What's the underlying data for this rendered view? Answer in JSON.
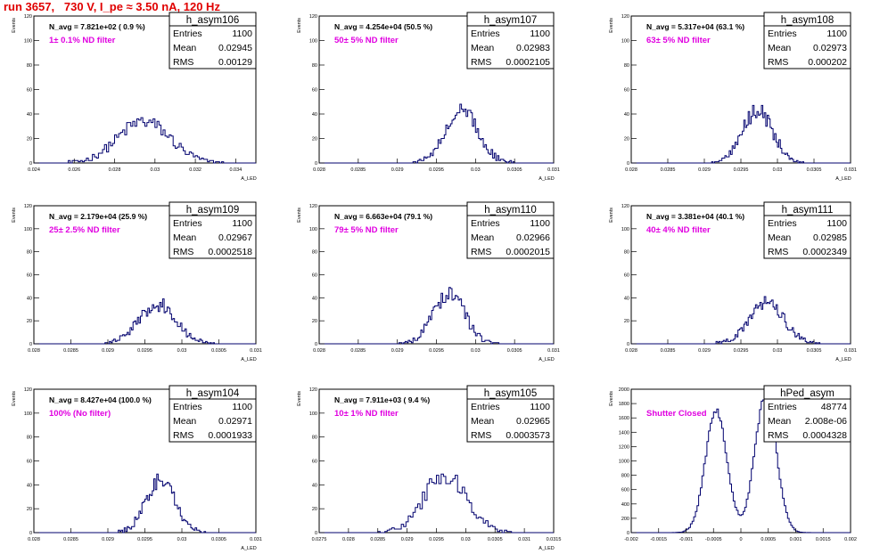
{
  "page_title": "run 3657,   730 V, I_pe ≈ 3.50 nA, 120 Hz",
  "colors": {
    "title": "#e00000",
    "annotation": "#e000e0",
    "histogram": "#00006e",
    "axis": "#000000",
    "panel_bg": "#ffffff"
  },
  "chart_data": [
    {
      "type": "histogram",
      "name": "h_asym106",
      "stats": {
        "entries_label": "Entries",
        "entries": "1100",
        "mean_label": "Mean",
        "mean": "0.02945",
        "rms_label": "RMS",
        "rms": "0.00129"
      },
      "n_avg_text": "N_avg = 7.821e+02 ( 0.9 %)",
      "filter_text": "1± 0.1% ND filter",
      "ylabel": "Events",
      "xlabel": "A_LED",
      "xlim": [
        0.024,
        0.035
      ],
      "ylim": [
        0,
        120
      ],
      "x_ticks": [
        0.024,
        0.026,
        0.028,
        0.03,
        0.032,
        0.034
      ],
      "x_tick_labels": [
        "0.024",
        "0.026",
        "0.028",
        "0.03",
        "0.032",
        "0.034"
      ],
      "y_ticks": [
        0,
        20,
        40,
        60,
        80,
        100,
        120
      ],
      "y_tick_labels": [
        "0",
        "20",
        "40",
        "60",
        "80",
        "100",
        "120"
      ],
      "mean_value": 0.02945,
      "rms_value": 0.00129,
      "total_counts": 1100,
      "bin_width": 0.0001,
      "peak_counts": 45,
      "shape": "gauss"
    },
    {
      "type": "histogram",
      "name": "h_asym107",
      "stats": {
        "entries_label": "Entries",
        "entries": "1100",
        "mean_label": "Mean",
        "mean": "0.02983",
        "rms_label": "RMS",
        "rms": "0.0002105"
      },
      "n_avg_text": "N_avg = 4.254e+04 (50.5 %)",
      "filter_text": "50± 5% ND filter",
      "ylabel": "Events",
      "xlabel": "A_LED",
      "xlim": [
        0.028,
        0.031
      ],
      "ylim": [
        0,
        120
      ],
      "x_ticks": [
        0.028,
        0.0285,
        0.029,
        0.0295,
        0.03,
        0.0305,
        0.031
      ],
      "x_tick_labels": [
        "0.028",
        "0.0285",
        "0.029",
        "0.0295",
        "0.03",
        "0.0305",
        "0.031"
      ],
      "y_ticks": [
        0,
        20,
        40,
        60,
        80,
        100,
        120
      ],
      "y_tick_labels": [
        "0",
        "20",
        "40",
        "60",
        "80",
        "100",
        "120"
      ],
      "mean_value": 0.02983,
      "rms_value": 0.0002105,
      "total_counts": 1100,
      "bin_width": 2e-05,
      "peak_counts": 82,
      "shape": "gauss"
    },
    {
      "type": "histogram",
      "name": "h_asym108",
      "stats": {
        "entries_label": "Entries",
        "entries": "1100",
        "mean_label": "Mean",
        "mean": "0.02973",
        "rms_label": "RMS",
        "rms": "0.000202"
      },
      "n_avg_text": "N_avg = 5.317e+04 (63.1 %)",
      "filter_text": "63± 5% ND filter",
      "ylabel": "Events",
      "xlabel": "A_LED",
      "xlim": [
        0.028,
        0.031
      ],
      "ylim": [
        0,
        120
      ],
      "x_ticks": [
        0.028,
        0.0285,
        0.029,
        0.0295,
        0.03,
        0.0305,
        0.031
      ],
      "x_tick_labels": [
        "0.028",
        "0.0285",
        "0.029",
        "0.0295",
        "0.03",
        "0.0305",
        "0.031"
      ],
      "y_ticks": [
        0,
        20,
        40,
        60,
        80,
        100,
        120
      ],
      "y_tick_labels": [
        "0",
        "20",
        "40",
        "60",
        "80",
        "100",
        "120"
      ],
      "mean_value": 0.02973,
      "rms_value": 0.000202,
      "total_counts": 1100,
      "bin_width": 2e-05,
      "peak_counts": 70,
      "shape": "gauss"
    },
    {
      "type": "histogram",
      "name": "h_asym109",
      "stats": {
        "entries_label": "Entries",
        "entries": "1100",
        "mean_label": "Mean",
        "mean": "0.02967",
        "rms_label": "RMS",
        "rms": "0.0002518"
      },
      "n_avg_text": "N_avg = 2.179e+04 (25.9 %)",
      "filter_text": "25± 2.5% ND filter",
      "ylabel": "Events",
      "xlabel": "A_LED",
      "xlim": [
        0.028,
        0.031
      ],
      "ylim": [
        0,
        120
      ],
      "x_ticks": [
        0.028,
        0.0285,
        0.029,
        0.0295,
        0.03,
        0.0305,
        0.031
      ],
      "x_tick_labels": [
        "0.028",
        "0.0285",
        "0.029",
        "0.0295",
        "0.03",
        "0.0305",
        "0.031"
      ],
      "y_ticks": [
        0,
        20,
        40,
        60,
        80,
        100,
        120
      ],
      "y_tick_labels": [
        "0",
        "20",
        "40",
        "60",
        "80",
        "100",
        "120"
      ],
      "mean_value": 0.02967,
      "rms_value": 0.0002518,
      "total_counts": 1100,
      "bin_width": 2e-05,
      "peak_counts": 61,
      "shape": "gauss"
    },
    {
      "type": "histogram",
      "name": "h_asym110",
      "stats": {
        "entries_label": "Entries",
        "entries": "1100",
        "mean_label": "Mean",
        "mean": "0.02966",
        "rms_label": "RMS",
        "rms": "0.0002015"
      },
      "n_avg_text": "N_avg = 6.663e+04 (79.1 %)",
      "filter_text": "79± 5% ND filter",
      "ylabel": "Events",
      "xlabel": "A_LED",
      "xlim": [
        0.028,
        0.031
      ],
      "ylim": [
        0,
        120
      ],
      "x_ticks": [
        0.028,
        0.0285,
        0.029,
        0.0295,
        0.03,
        0.0305,
        0.031
      ],
      "x_tick_labels": [
        "0.028",
        "0.0285",
        "0.029",
        "0.0295",
        "0.03",
        "0.0305",
        "0.031"
      ],
      "y_ticks": [
        0,
        20,
        40,
        60,
        80,
        100,
        120
      ],
      "y_tick_labels": [
        "0",
        "20",
        "40",
        "60",
        "80",
        "100",
        "120"
      ],
      "mean_value": 0.02966,
      "rms_value": 0.0002015,
      "total_counts": 1100,
      "bin_width": 2e-05,
      "peak_counts": 73,
      "shape": "gauss"
    },
    {
      "type": "histogram",
      "name": "h_asym111",
      "stats": {
        "entries_label": "Entries",
        "entries": "1100",
        "mean_label": "Mean",
        "mean": "0.02985",
        "rms_label": "RMS",
        "rms": "0.0002349"
      },
      "n_avg_text": "N_avg = 3.381e+04 (40.1 %)",
      "filter_text": "40± 4% ND filter",
      "ylabel": "Events",
      "xlabel": "A_LED",
      "xlim": [
        0.028,
        0.031
      ],
      "ylim": [
        0,
        120
      ],
      "x_ticks": [
        0.028,
        0.0285,
        0.029,
        0.0295,
        0.03,
        0.0305,
        0.031
      ],
      "x_tick_labels": [
        "0.028",
        "0.0285",
        "0.029",
        "0.0295",
        "0.03",
        "0.0305",
        "0.031"
      ],
      "y_ticks": [
        0,
        20,
        40,
        60,
        80,
        100,
        120
      ],
      "y_tick_labels": [
        "0",
        "20",
        "40",
        "60",
        "80",
        "100",
        "120"
      ],
      "mean_value": 0.02985,
      "rms_value": 0.0002349,
      "total_counts": 1100,
      "bin_width": 2e-05,
      "peak_counts": 77,
      "shape": "gauss"
    },
    {
      "type": "histogram",
      "name": "h_asym104",
      "stats": {
        "entries_label": "Entries",
        "entries": "1100",
        "mean_label": "Mean",
        "mean": "0.02971",
        "rms_label": "RMS",
        "rms": "0.0001933"
      },
      "n_avg_text": "N_avg = 8.427e+04 (100.0 %)",
      "filter_text": "100% (No filter)",
      "ylabel": "Events",
      "xlabel": "A_LED",
      "xlim": [
        0.028,
        0.031
      ],
      "ylim": [
        0,
        120
      ],
      "x_ticks": [
        0.028,
        0.0285,
        0.029,
        0.0295,
        0.03,
        0.0305,
        0.031
      ],
      "x_tick_labels": [
        "0.028",
        "0.0285",
        "0.029",
        "0.0295",
        "0.03",
        "0.0305",
        "0.031"
      ],
      "y_ticks": [
        0,
        20,
        40,
        60,
        80,
        100,
        120
      ],
      "y_tick_labels": [
        "0",
        "20",
        "40",
        "60",
        "80",
        "100",
        "120"
      ],
      "mean_value": 0.02971,
      "rms_value": 0.0001933,
      "total_counts": 1100,
      "bin_width": 2e-05,
      "peak_counts": 77,
      "shape": "gauss"
    },
    {
      "type": "histogram",
      "name": "h_asym105",
      "stats": {
        "entries_label": "Entries",
        "entries": "1100",
        "mean_label": "Mean",
        "mean": "0.02965",
        "rms_label": "RMS",
        "rms": "0.0003573"
      },
      "n_avg_text": "N_avg = 7.911e+03 ( 9.4 %)",
      "filter_text": "10± 1% ND filter",
      "ylabel": "Events",
      "xlabel": "A_LED",
      "xlim": [
        0.0275,
        0.0315
      ],
      "ylim": [
        0,
        120
      ],
      "x_ticks": [
        0.0275,
        0.028,
        0.0285,
        0.029,
        0.0295,
        0.03,
        0.0305,
        0.031,
        0.0315
      ],
      "x_tick_labels": [
        "0.0275",
        "0.028",
        "0.0285",
        "0.029",
        "0.0295",
        "0.03",
        "0.0305",
        "0.031",
        "0.0315"
      ],
      "y_ticks": [
        0,
        20,
        40,
        60,
        80,
        100,
        120
      ],
      "y_tick_labels": [
        "0",
        "20",
        "40",
        "60",
        "80",
        "100",
        "120"
      ],
      "mean_value": 0.02965,
      "rms_value": 0.0003573,
      "total_counts": 1100,
      "bin_width": 4e-05,
      "peak_counts": 55,
      "shape": "gauss"
    },
    {
      "type": "histogram",
      "name": "hPed_asym",
      "stats": {
        "entries_label": "Entries",
        "entries": "48774",
        "mean_label": "Mean",
        "mean": "2.008e-06",
        "rms_label": "RMS",
        "rms": "0.0004328"
      },
      "n_avg_text": "",
      "filter_text": "Shutter Closed",
      "ylabel": "Events",
      "xlabel": "",
      "xlim": [
        -0.002,
        0.002
      ],
      "ylim": [
        0,
        2000
      ],
      "x_ticks": [
        -0.002,
        -0.0015,
        -0.001,
        -0.0005,
        0,
        0.0005,
        0.001,
        0.0015,
        0.002
      ],
      "x_tick_labels": [
        "-0.002",
        "-0.0015",
        "-0.001",
        "-0.0005",
        "0",
        "0.0005",
        "0.001",
        "0.0015",
        "0.002"
      ],
      "y_ticks": [
        0,
        200,
        400,
        600,
        800,
        1000,
        1200,
        1400,
        1600,
        1800,
        2000
      ],
      "y_tick_labels": [
        "0",
        "200",
        "400",
        "600",
        "800",
        "1000",
        "1200",
        "1400",
        "1600",
        "1800",
        "2000"
      ],
      "mean_value": 2e-06,
      "rms_value": 0.0004328,
      "total_counts": 48774,
      "bin_width": 3e-05,
      "peak_counts": 1900,
      "shape": "double"
    }
  ]
}
